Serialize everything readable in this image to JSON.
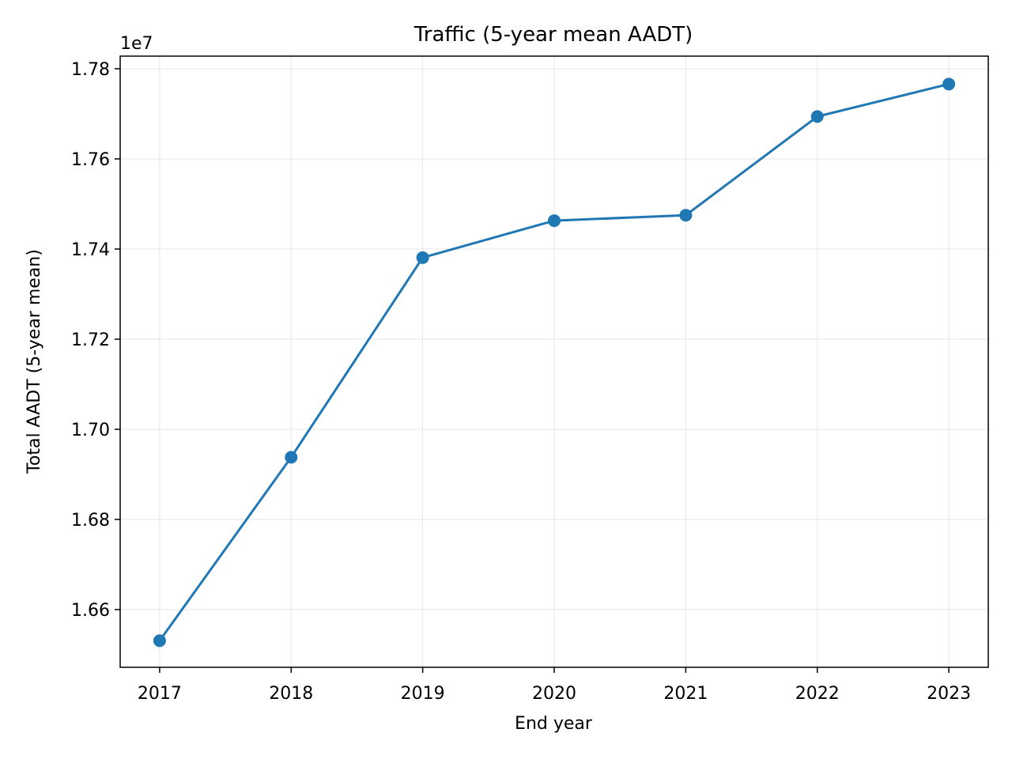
{
  "chart_data": {
    "type": "line",
    "title": "Traffic (5-year mean AADT)",
    "xlabel": "End year",
    "ylabel": "Total AADT (5-year mean)",
    "y_offset_label": "1e7",
    "x": [
      2017,
      2018,
      2019,
      2020,
      2021,
      2022,
      2023
    ],
    "x_tick_labels": [
      "2017",
      "2018",
      "2019",
      "2020",
      "2021",
      "2022",
      "2023"
    ],
    "y_ticks": [
      1.66,
      1.68,
      1.7,
      1.72,
      1.74,
      1.76,
      1.78
    ],
    "y_tick_labels": [
      "1.66",
      "1.68",
      "1.70",
      "1.72",
      "1.74",
      "1.76",
      "1.78"
    ],
    "y_scale_factor": 10000000,
    "series": [
      {
        "values": [
          1.6531,
          1.6938,
          1.7381,
          1.7463,
          1.7475,
          1.7694,
          1.7766
        ],
        "color": "#1f77b4"
      }
    ],
    "xlim": [
      2016.7,
      2023.3
    ],
    "ylim": [
      1.6472,
      1.7828
    ],
    "grid": true,
    "markers": true
  }
}
